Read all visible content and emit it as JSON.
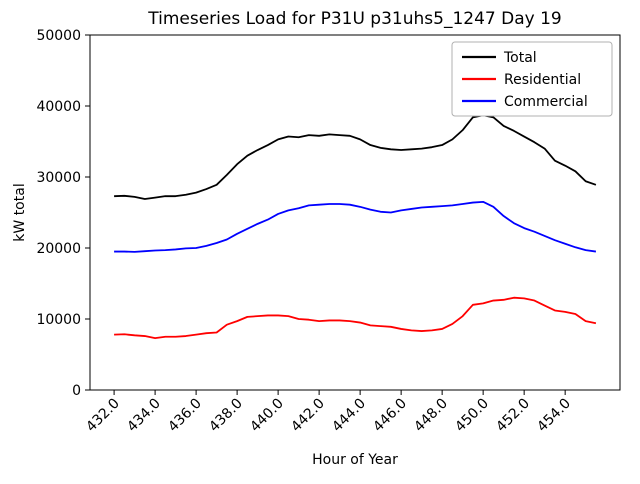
{
  "title": "Timeseries Load for P31U p31uhs5_1247  Day 19",
  "chart_data": {
    "type": "line",
    "title": "Timeseries Load for P31U p31uhs5_1247  Day 19",
    "xlabel": "Hour of Year",
    "ylabel": "kW total",
    "xlim": [
      430.825,
      456.675
    ],
    "ylim": [
      0,
      50000
    ],
    "grid": false,
    "legend_position": "upper right",
    "xticks": [
      432,
      434,
      436,
      438,
      440,
      442,
      444,
      446,
      448,
      450,
      452,
      454
    ],
    "xtick_labels": [
      "432.0",
      "434.0",
      "436.0",
      "438.0",
      "440.0",
      "442.0",
      "444.0",
      "446.0",
      "448.0",
      "450.0",
      "452.0",
      "454.0"
    ],
    "yticks": [
      0,
      10000,
      20000,
      30000,
      40000,
      50000
    ],
    "ytick_labels": [
      "0",
      "10000",
      "20000",
      "30000",
      "40000",
      "50000"
    ],
    "x": [
      432.0,
      432.5,
      433.0,
      433.5,
      434.0,
      434.5,
      435.0,
      435.5,
      436.0,
      436.5,
      437.0,
      437.5,
      438.0,
      438.5,
      439.0,
      439.5,
      440.0,
      440.5,
      441.0,
      441.5,
      442.0,
      442.5,
      443.0,
      443.5,
      444.0,
      444.5,
      445.0,
      445.5,
      446.0,
      446.5,
      447.0,
      447.5,
      448.0,
      448.5,
      449.0,
      449.5,
      450.0,
      450.5,
      451.0,
      451.5,
      452.0,
      452.5,
      453.0,
      453.5,
      454.0,
      454.5,
      455.0,
      455.5
    ],
    "series": [
      {
        "name": "Total",
        "color": "#000000",
        "values": [
          27300,
          27350,
          27200,
          26900,
          27100,
          27300,
          27300,
          27500,
          27800,
          28300,
          28900,
          30300,
          31800,
          33000,
          33800,
          34500,
          35300,
          35700,
          35600,
          35900,
          35800,
          36000,
          35900,
          35800,
          35300,
          34500,
          34100,
          33900,
          33800,
          33900,
          34000,
          34200,
          34500,
          35300,
          36600,
          38400,
          38700,
          38400,
          37200,
          36500,
          35700,
          34900,
          34000,
          32300,
          31600,
          30800,
          29400,
          28900
        ]
      },
      {
        "name": "Residential",
        "color": "#ff0000",
        "values": [
          7800,
          7850,
          7700,
          7600,
          7300,
          7500,
          7500,
          7600,
          7800,
          8000,
          8100,
          9200,
          9700,
          10300,
          10400,
          10500,
          10500,
          10400,
          10000,
          9900,
          9700,
          9800,
          9800,
          9700,
          9500,
          9100,
          9000,
          8900,
          8600,
          8400,
          8300,
          8400,
          8600,
          9300,
          10400,
          12000,
          12200,
          12600,
          12700,
          13000,
          12900,
          12600,
          11900,
          11200,
          11000,
          10700,
          9700,
          9400
        ]
      },
      {
        "name": "Commercial",
        "color": "#0000ff",
        "values": [
          19500,
          19500,
          19450,
          19550,
          19650,
          19700,
          19800,
          19950,
          20000,
          20300,
          20700,
          21200,
          22000,
          22700,
          23400,
          24000,
          24800,
          25300,
          25600,
          26000,
          26100,
          26200,
          26200,
          26100,
          25800,
          25400,
          25100,
          25000,
          25300,
          25500,
          25700,
          25800,
          25900,
          26000,
          26200,
          26400,
          26500,
          25800,
          24500,
          23500,
          22800,
          22300,
          21700,
          21100,
          20600,
          20100,
          19700,
          19500
        ]
      }
    ]
  }
}
